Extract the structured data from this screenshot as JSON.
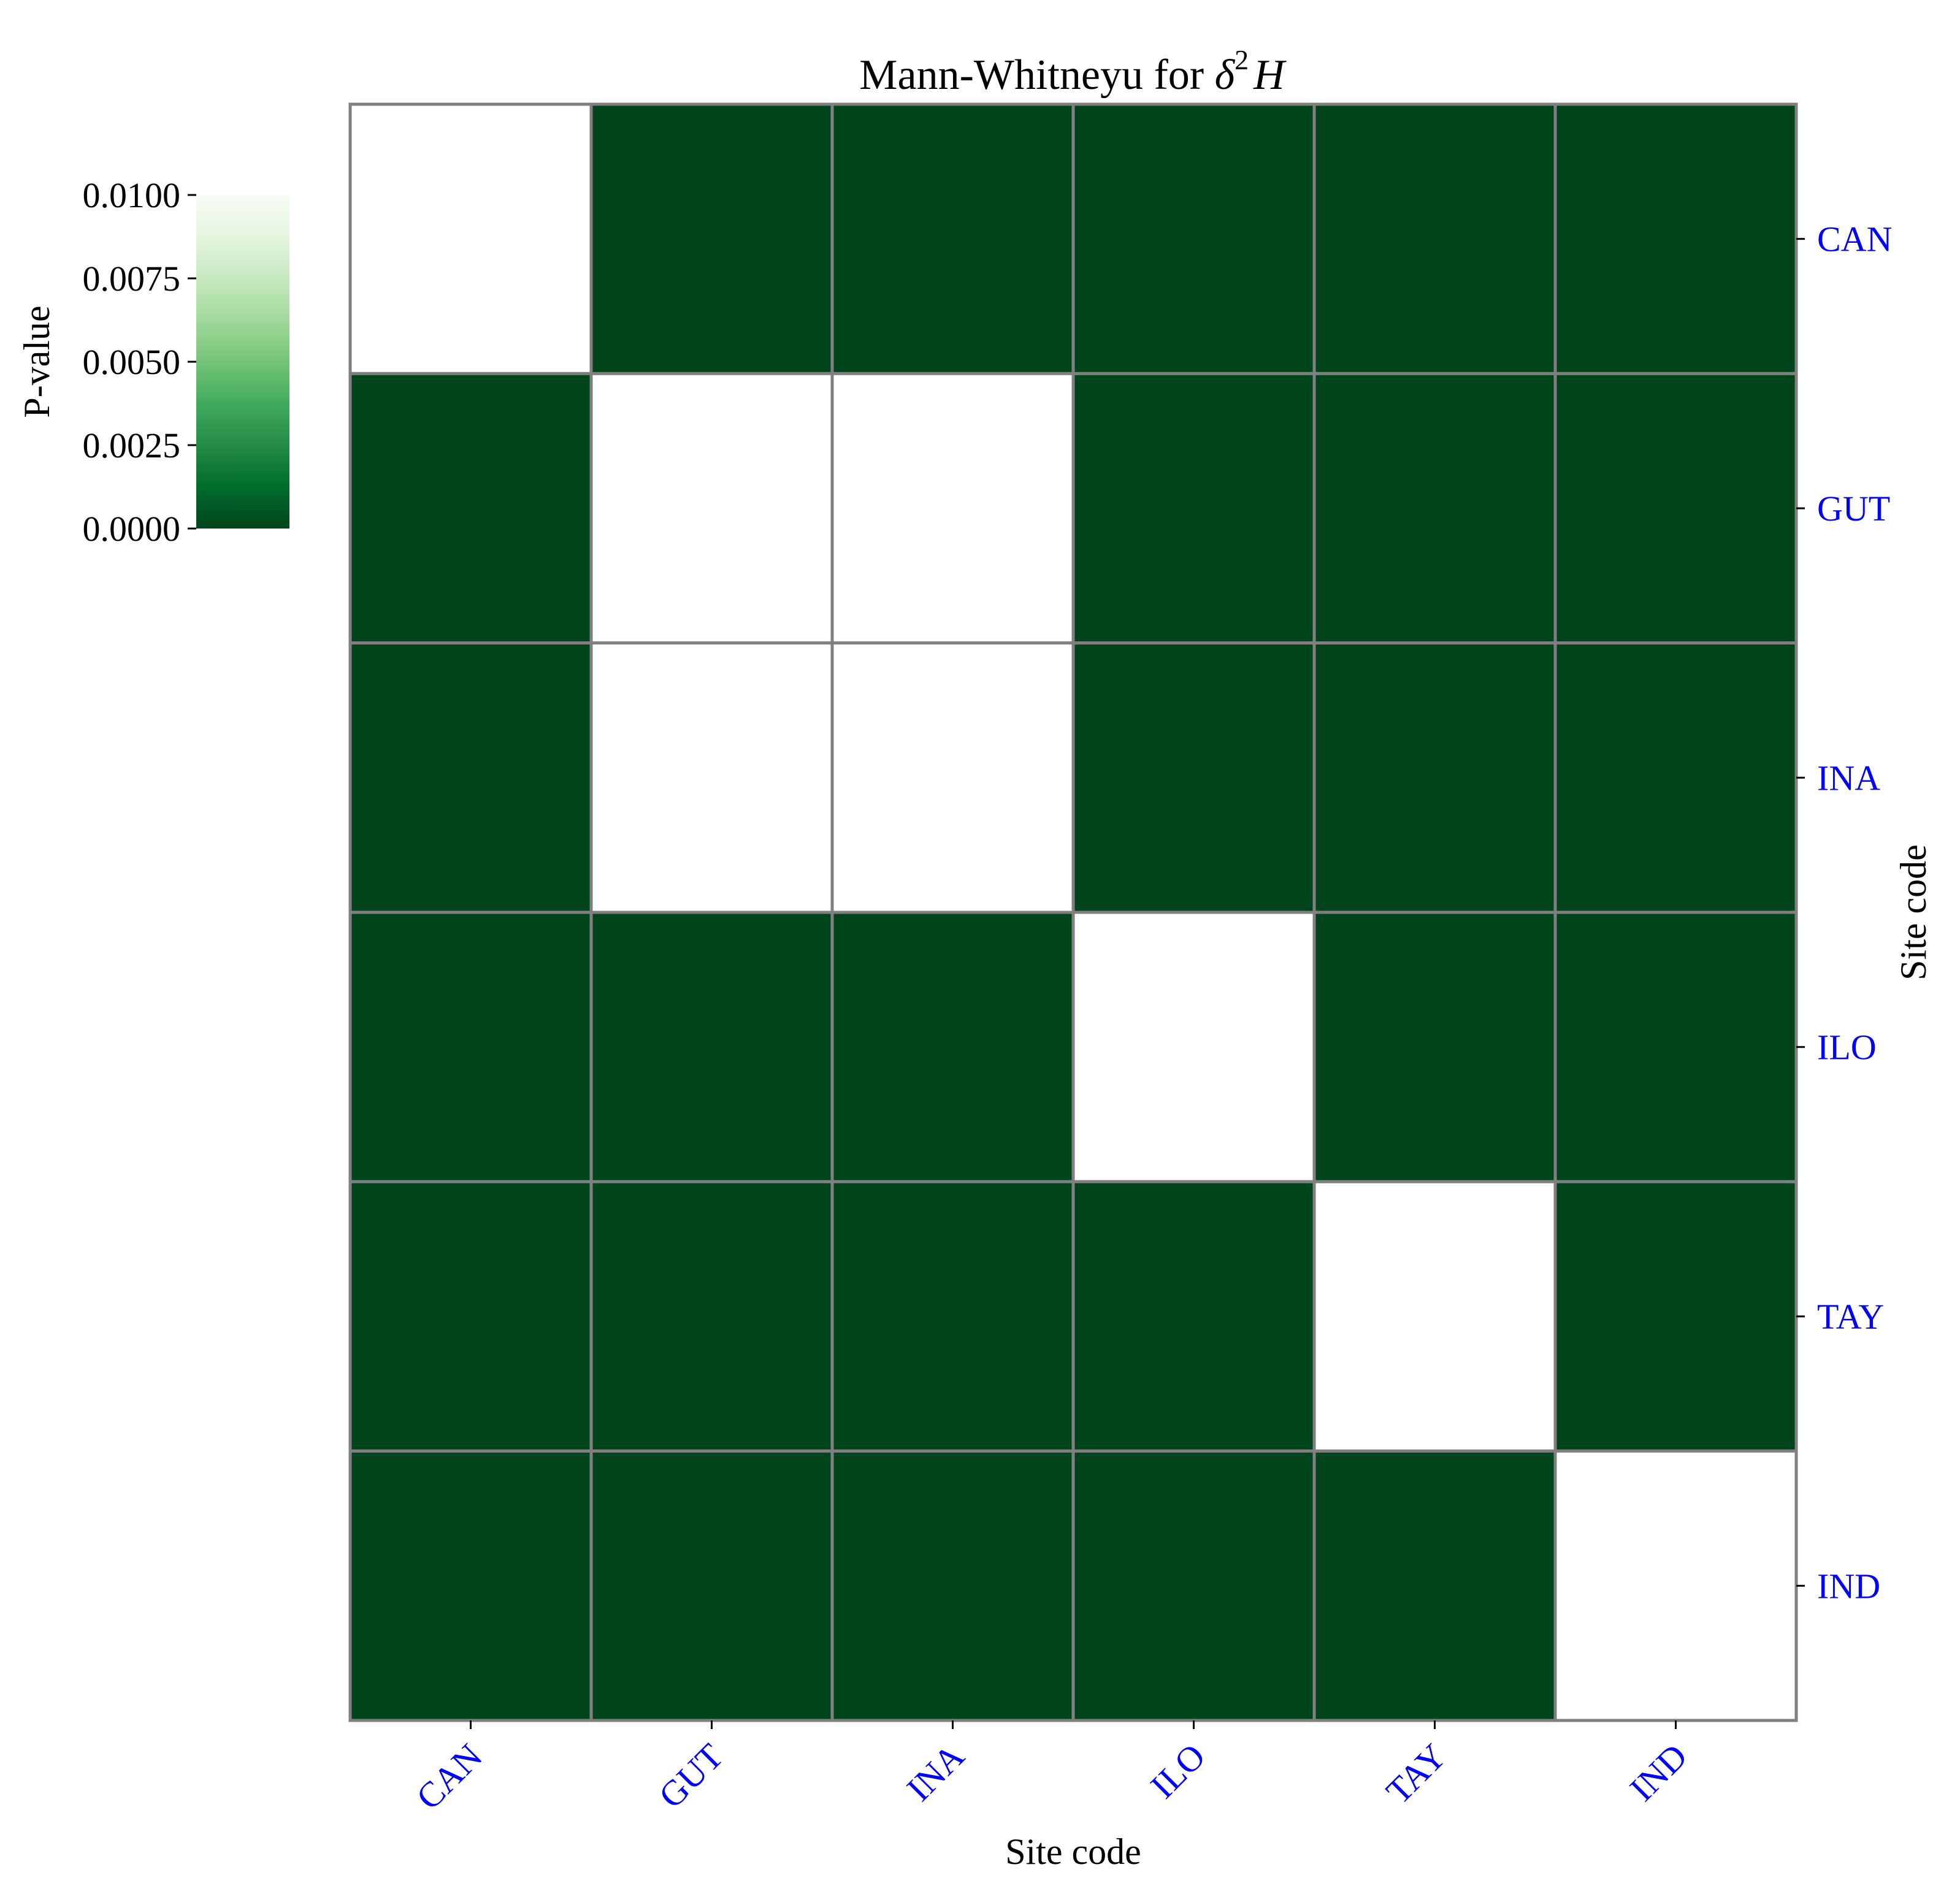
{
  "chart_data": {
    "type": "heatmap",
    "title_prefix": "Mann-Whitneyu for ",
    "title_math": {
      "symbol": "δ",
      "superscript": "2",
      "variable": "H"
    },
    "xlabel": "Site code",
    "ylabel": "Site code",
    "x_categories": [
      "CAN",
      "GUT",
      "INA",
      "ILO",
      "TAY",
      "IND"
    ],
    "y_categories": [
      "CAN",
      "GUT",
      "INA",
      "ILO",
      "TAY",
      "IND"
    ],
    "values": [
      [
        null,
        0.0,
        0.0,
        0.0,
        0.0,
        0.0
      ],
      [
        0.0,
        null,
        null,
        0.0,
        0.0,
        0.0
      ],
      [
        0.0,
        null,
        null,
        0.0,
        0.0,
        0.0
      ],
      [
        0.0,
        0.0,
        0.0,
        null,
        0.0,
        0.0
      ],
      [
        0.0,
        0.0,
        0.0,
        0.0,
        null,
        0.0
      ],
      [
        0.0,
        0.0,
        0.0,
        0.0,
        0.0,
        null
      ]
    ],
    "colorbar": {
      "label": "P-value",
      "min": 0.0,
      "max": 0.01,
      "ticks": [
        "0.0000",
        "0.0025",
        "0.0050",
        "0.0075",
        "0.0100"
      ],
      "colors": [
        "#00441b",
        "#006d2c",
        "#238b45",
        "#41ab5d",
        "#74c476",
        "#a1d99b",
        "#c7e9c0",
        "#e5f5e0",
        "#f7fcf5"
      ]
    },
    "cell_edge_color": "#808080",
    "tick_label_color": "#0000ff",
    "grid": false
  }
}
